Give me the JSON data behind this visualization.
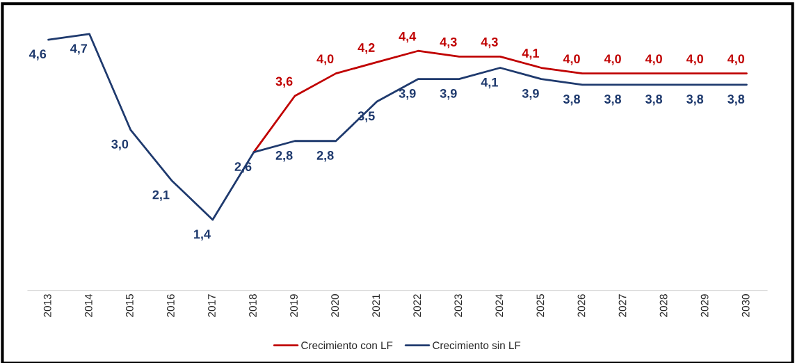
{
  "chart_data": {
    "type": "line",
    "categories": [
      "2013",
      "2014",
      "2015",
      "2016",
      "2017",
      "2018",
      "2019",
      "2020",
      "2021",
      "2022",
      "2023",
      "2024",
      "2025",
      "2026",
      "2027",
      "2028",
      "2029",
      "2030"
    ],
    "tick_labels": "x",
    "grid": false,
    "legend": "bottom",
    "marker": "none",
    "line_style": "solid",
    "series": [
      {
        "name": "Crecimiento con LF",
        "color": "#c00000",
        "values": [
          null,
          null,
          null,
          null,
          null,
          2.6,
          3.6,
          4.0,
          4.2,
          4.4,
          4.3,
          4.3,
          4.1,
          4.0,
          4.0,
          4.0,
          4.0,
          4.0
        ],
        "value_labels": [
          null,
          null,
          null,
          null,
          null,
          null,
          "3,6",
          "4,0",
          "4,2",
          "4,4",
          "4,3",
          "4,3",
          "4,1",
          "4,0",
          "4,0",
          "4,0",
          "4,0",
          "4,0"
        ]
      },
      {
        "name": "Crecimiento sin LF",
        "color": "#1f3a6e",
        "values": [
          4.6,
          4.7,
          3.0,
          2.1,
          1.4,
          2.6,
          2.8,
          2.8,
          3.5,
          3.9,
          3.9,
          4.1,
          3.9,
          3.8,
          3.8,
          3.8,
          3.8,
          3.8
        ],
        "value_labels": [
          "4,6",
          "4,7",
          "3,0",
          "2,1",
          "1,4",
          "2,6",
          "2,8",
          "2,8",
          "3,5",
          "3,9",
          "3,9",
          "4,1",
          "3,9",
          "3,8",
          "3,8",
          "3,8",
          "3,8",
          "3,8"
        ]
      }
    ]
  }
}
